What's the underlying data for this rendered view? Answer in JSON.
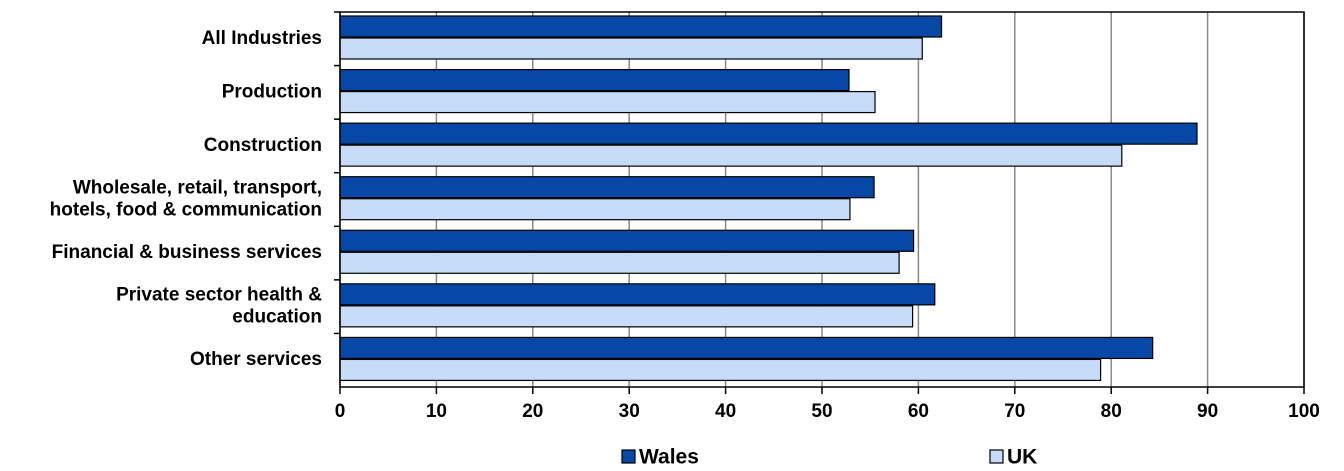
{
  "chart_data": {
    "type": "hbar",
    "categories": [
      "All Industries",
      "Production",
      "Construction",
      "Wholesale, retail, transport,\nhotels,  food & communication",
      "Financial & business services",
      "Private sector health &\neducation",
      "Other services"
    ],
    "series": [
      {
        "name": "Wales",
        "color": "#0747a6",
        "values": [
          62.4,
          52.8,
          88.9,
          55.4,
          59.5,
          61.7,
          84.3
        ]
      },
      {
        "name": "UK",
        "color": "#c6dbf7",
        "values": [
          60.4,
          55.5,
          81.1,
          52.9,
          58,
          59.4,
          78.9
        ]
      }
    ],
    "xlim": [
      0,
      100
    ],
    "xticks": [
      0,
      10,
      20,
      30,
      40,
      50,
      60,
      70,
      80,
      90,
      100
    ],
    "grid": true,
    "legend": "bottom"
  }
}
